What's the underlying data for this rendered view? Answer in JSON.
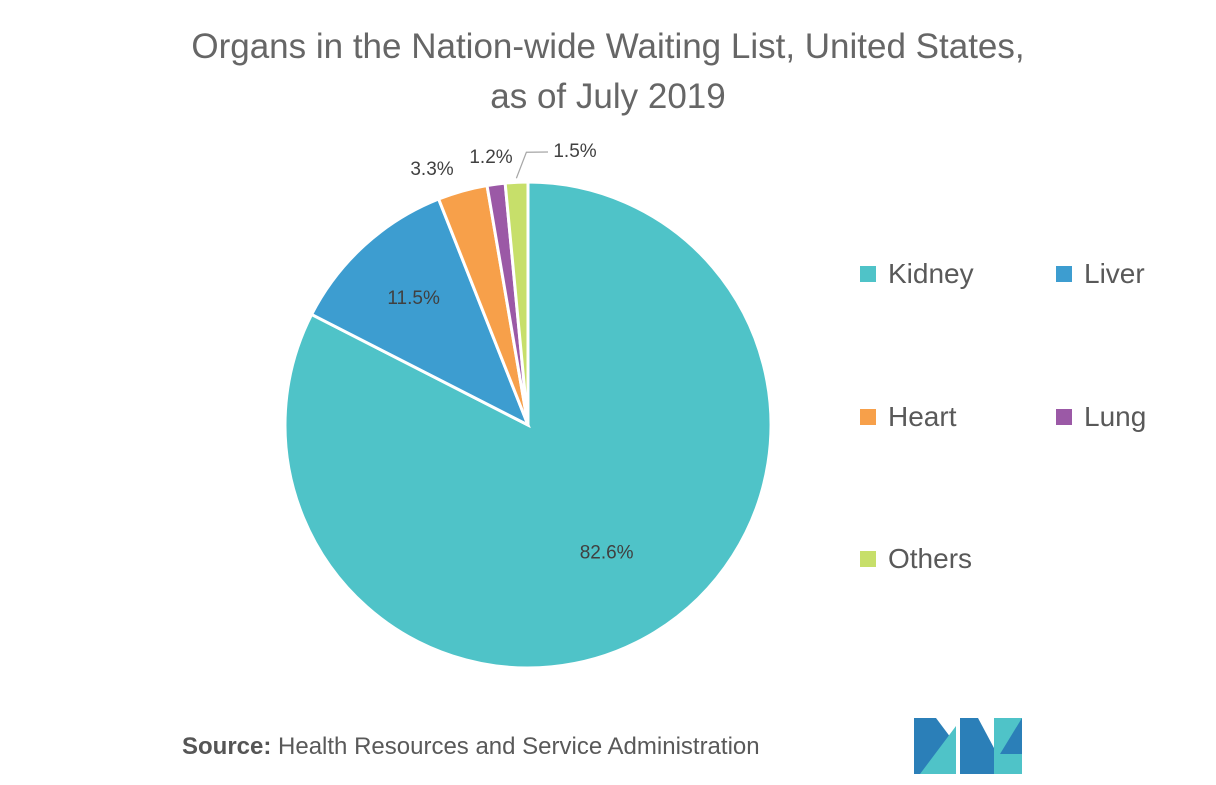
{
  "chart_data": {
    "type": "pie",
    "title_lines": [
      "Organs in the Nation-wide Waiting List, United States,",
      "as of July 2019"
    ],
    "categories": [
      "Kidney",
      "Liver",
      "Heart",
      "Lung",
      "Others"
    ],
    "values": [
      82.6,
      11.5,
      3.3,
      1.2,
      1.5
    ],
    "value_labels": [
      "82.6%",
      "11.5%",
      "3.3%",
      "1.2%",
      "1.5%"
    ],
    "colors": [
      "#4fc3c8",
      "#3d9dd0",
      "#f7a04a",
      "#9b59a6",
      "#c7df6a"
    ],
    "legend_position": "right",
    "start": "12 o'clock, clockwise"
  },
  "source": {
    "label": "Source:",
    "text": " Health Resources and Service Administration"
  },
  "logo": {
    "icon": "mordor-intelligence-logo-icon",
    "colors": [
      "#2b7fb8",
      "#4fc3c8"
    ]
  }
}
